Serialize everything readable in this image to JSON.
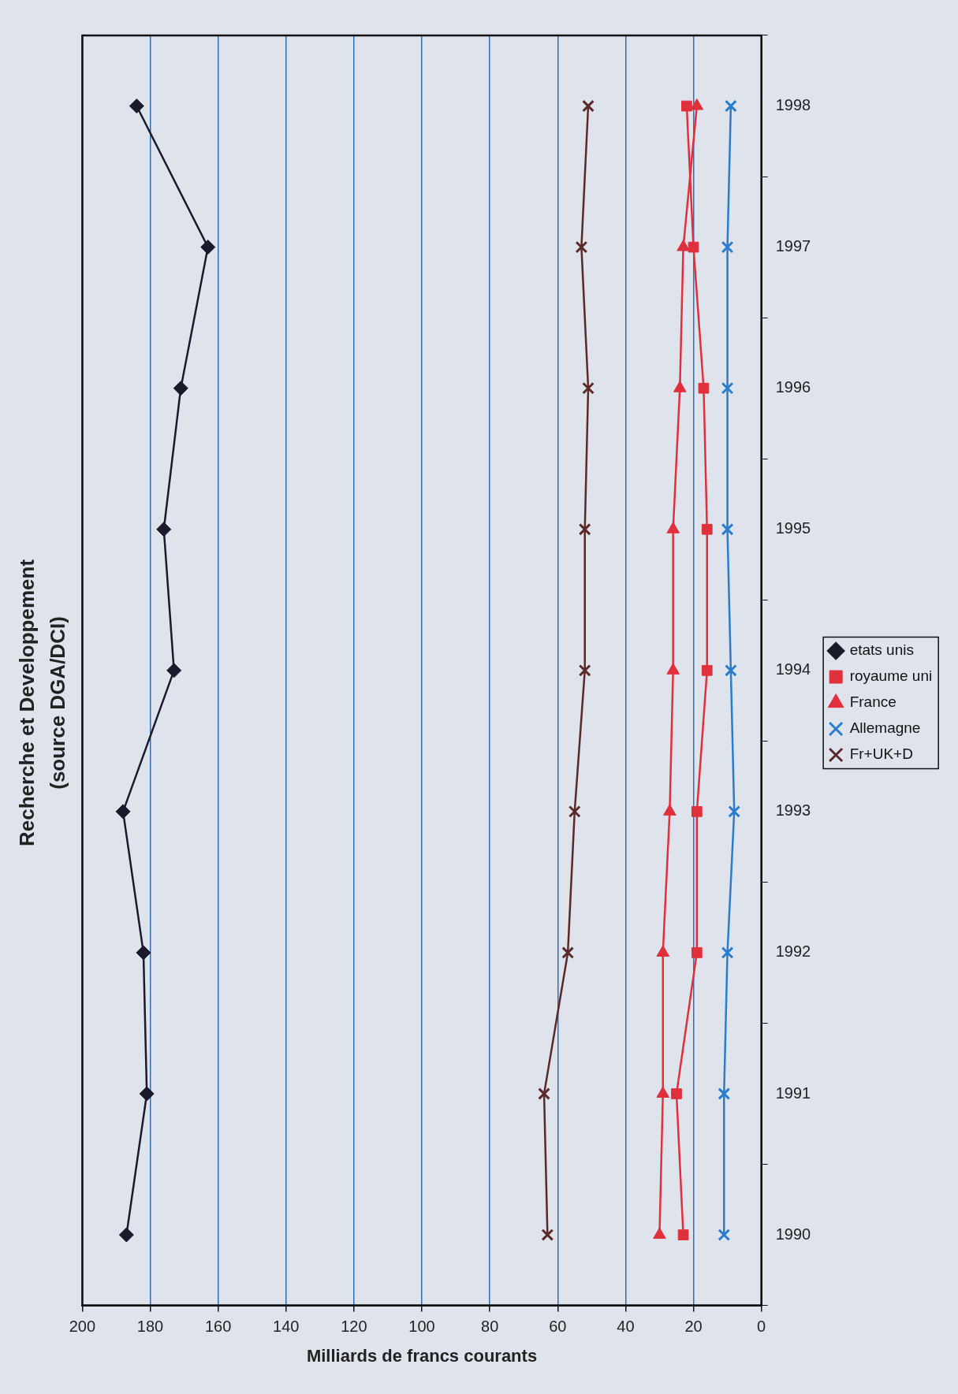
{
  "chart_data": {
    "type": "line",
    "orientation": "horizontal",
    "title": "Recherche et Developpement",
    "subtitle": "(source DGA/DCI)",
    "xlabel": "Milliards de francs courants",
    "categories": [
      "1998",
      "1997",
      "1996",
      "1995",
      "1994",
      "1993",
      "1992",
      "1991",
      "1990"
    ],
    "series": [
      {
        "name": "etats unis",
        "color": "#1a1a2a",
        "marker": "diamond",
        "values": [
          184,
          163,
          171,
          176,
          173,
          188,
          182,
          181,
          187
        ]
      },
      {
        "name": "royaume uni",
        "color": "#e0303c",
        "marker": "square",
        "values": [
          22,
          20,
          17,
          16,
          16,
          19,
          19,
          25,
          23
        ]
      },
      {
        "name": "France",
        "color": "#e0303c",
        "marker": "triangle",
        "values": [
          19,
          23,
          24,
          26,
          26,
          27,
          29,
          29,
          30
        ]
      },
      {
        "name": "Allemagne",
        "color": "#2a7ccc",
        "marker": "cross",
        "values": [
          9,
          10,
          10,
          10,
          9,
          8,
          10,
          11,
          11
        ]
      },
      {
        "name": "Fr+UK+D",
        "color": "#5a2a2a",
        "marker": "cross",
        "values": [
          51,
          53,
          51,
          52,
          52,
          55,
          57,
          64,
          63
        ]
      }
    ],
    "xlim": [
      200,
      0
    ],
    "xticks": [
      200,
      180,
      160,
      140,
      120,
      100,
      80,
      60,
      40,
      20,
      0
    ],
    "grid": "x",
    "legend": "right",
    "line_style": "solid"
  }
}
